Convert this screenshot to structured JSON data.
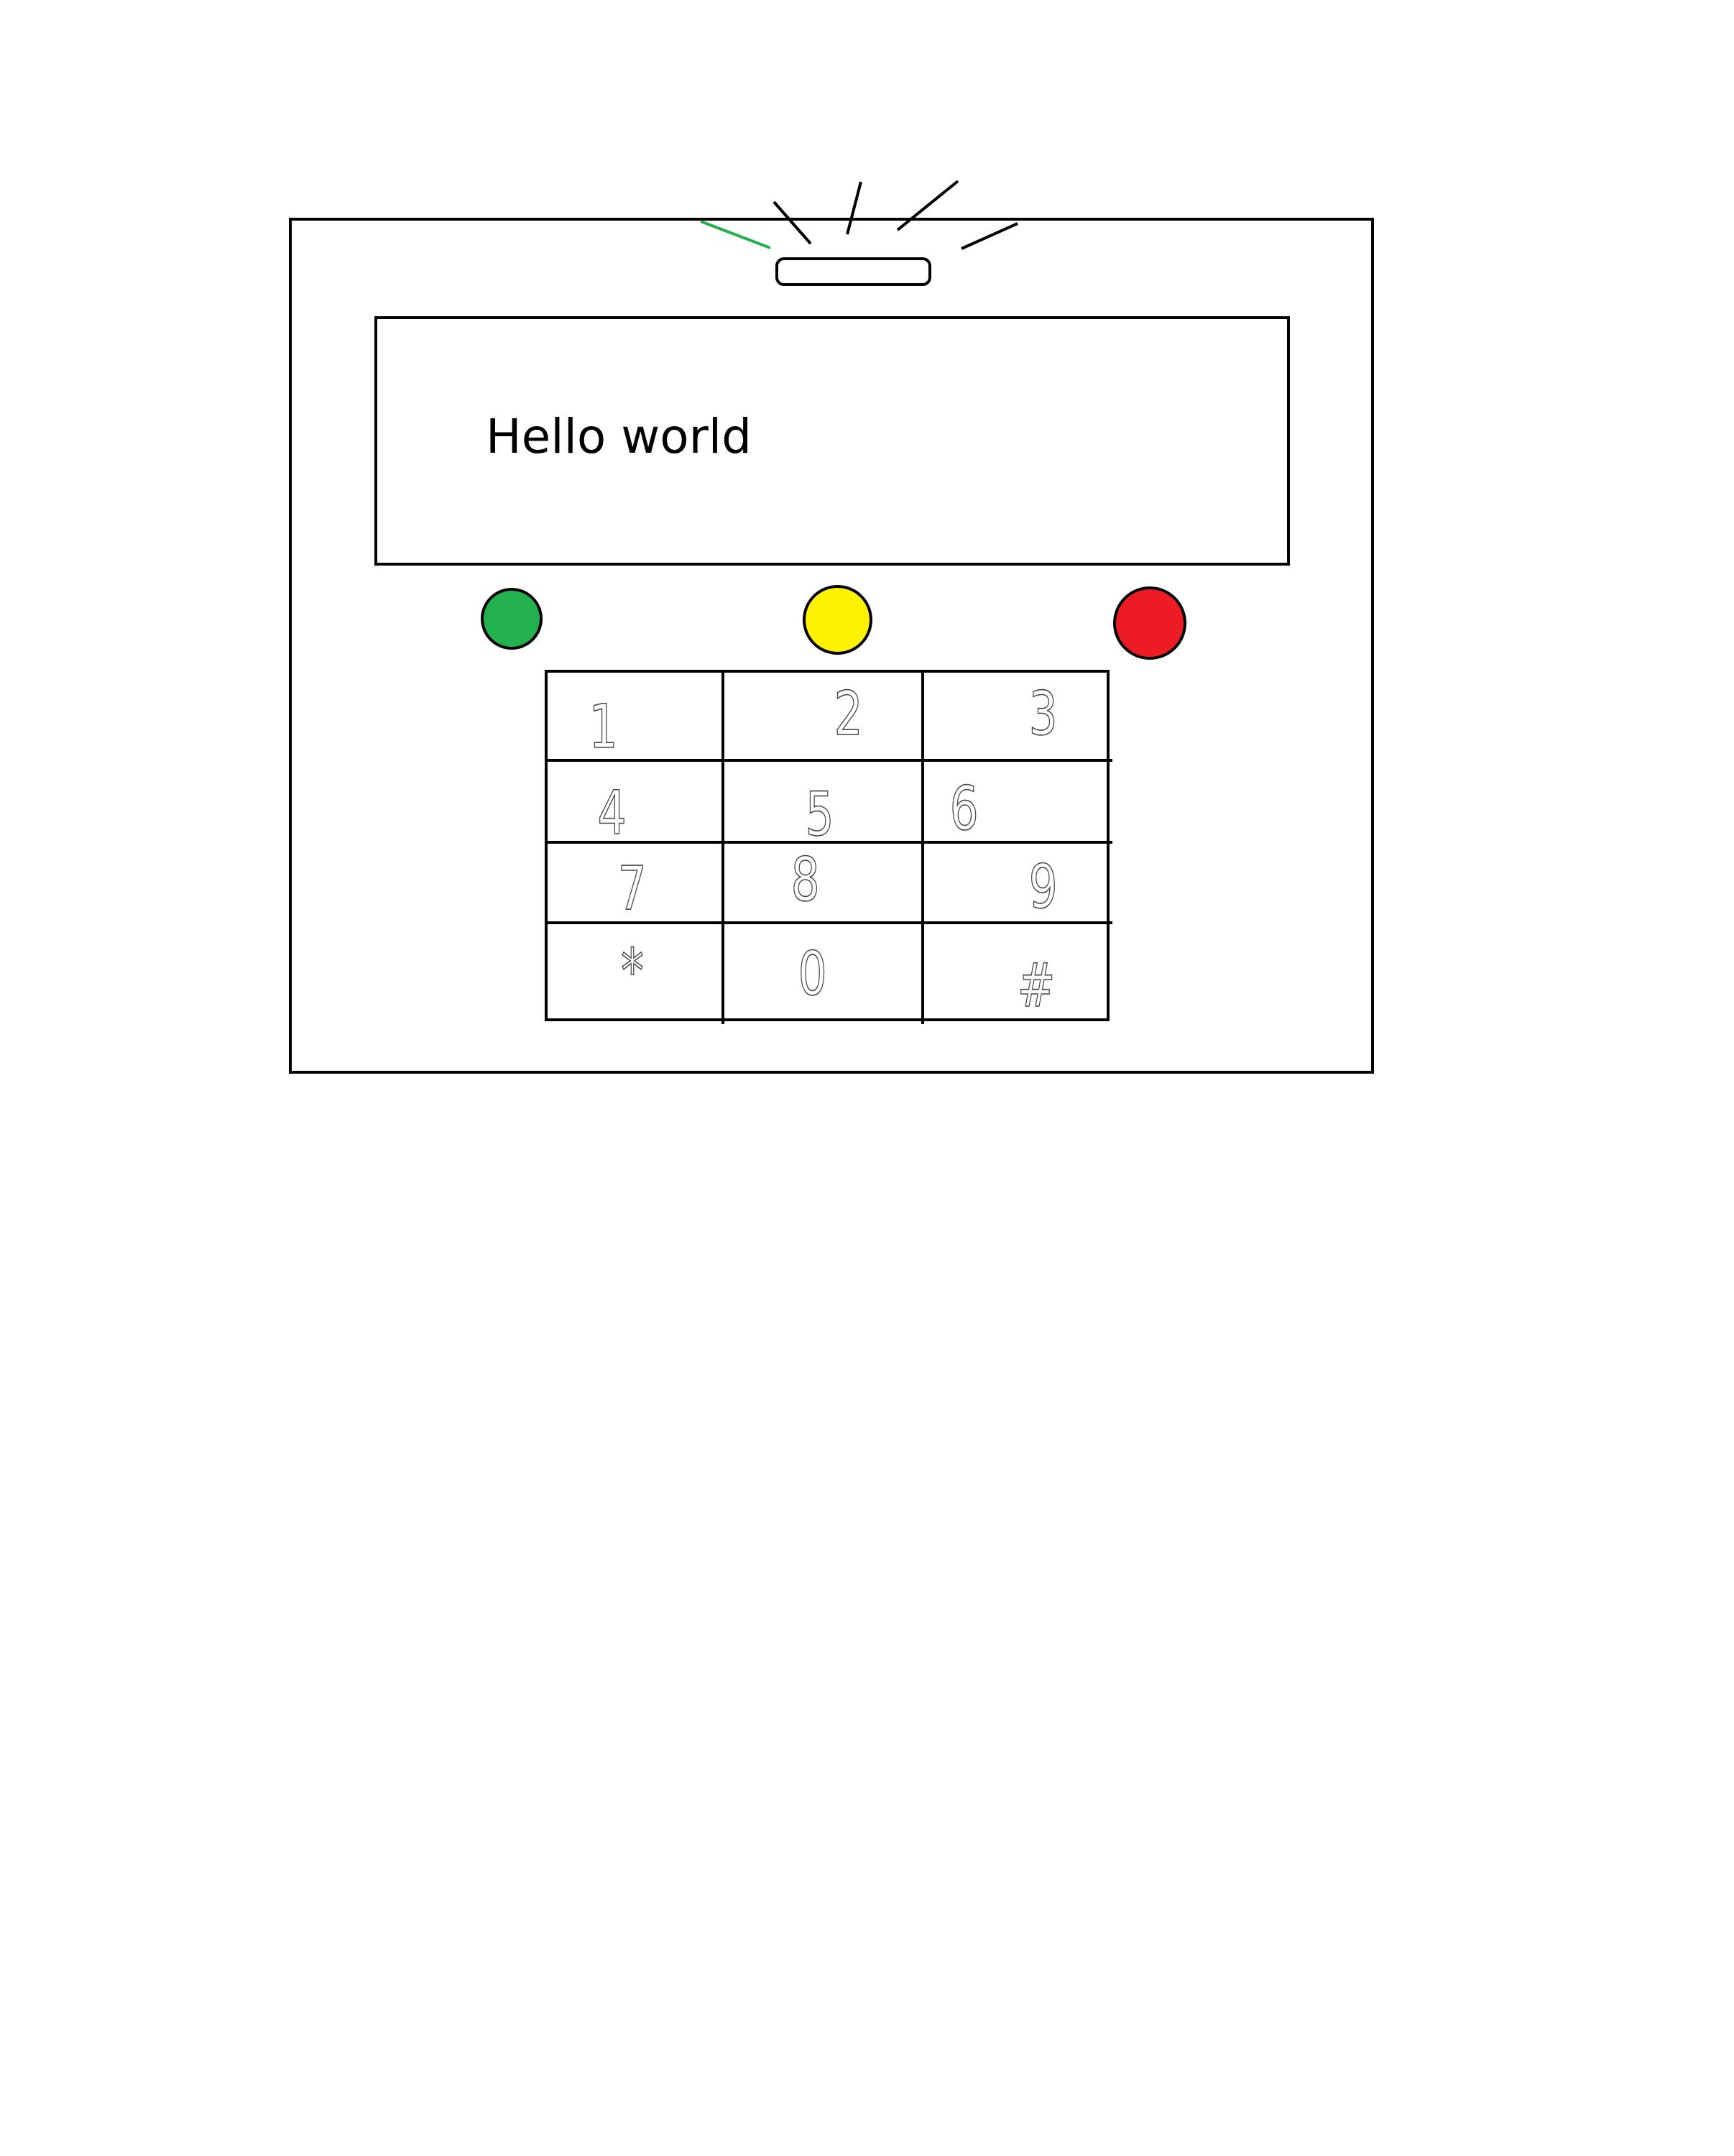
{
  "display": {
    "text": "Hello world"
  },
  "status_lights": [
    {
      "name": "green-status-light",
      "color": "#22b14c"
    },
    {
      "name": "yellow-status-light",
      "color": "#fff200"
    },
    {
      "name": "red-status-light",
      "color": "#ed1c24"
    }
  ],
  "keypad": {
    "keys": [
      "1",
      "2",
      "3",
      "4",
      "5",
      "6",
      "7",
      "8",
      "9",
      "*",
      "0",
      "#"
    ]
  },
  "colors": {
    "outline": "#000000",
    "accent_ray": "#22b14c"
  }
}
